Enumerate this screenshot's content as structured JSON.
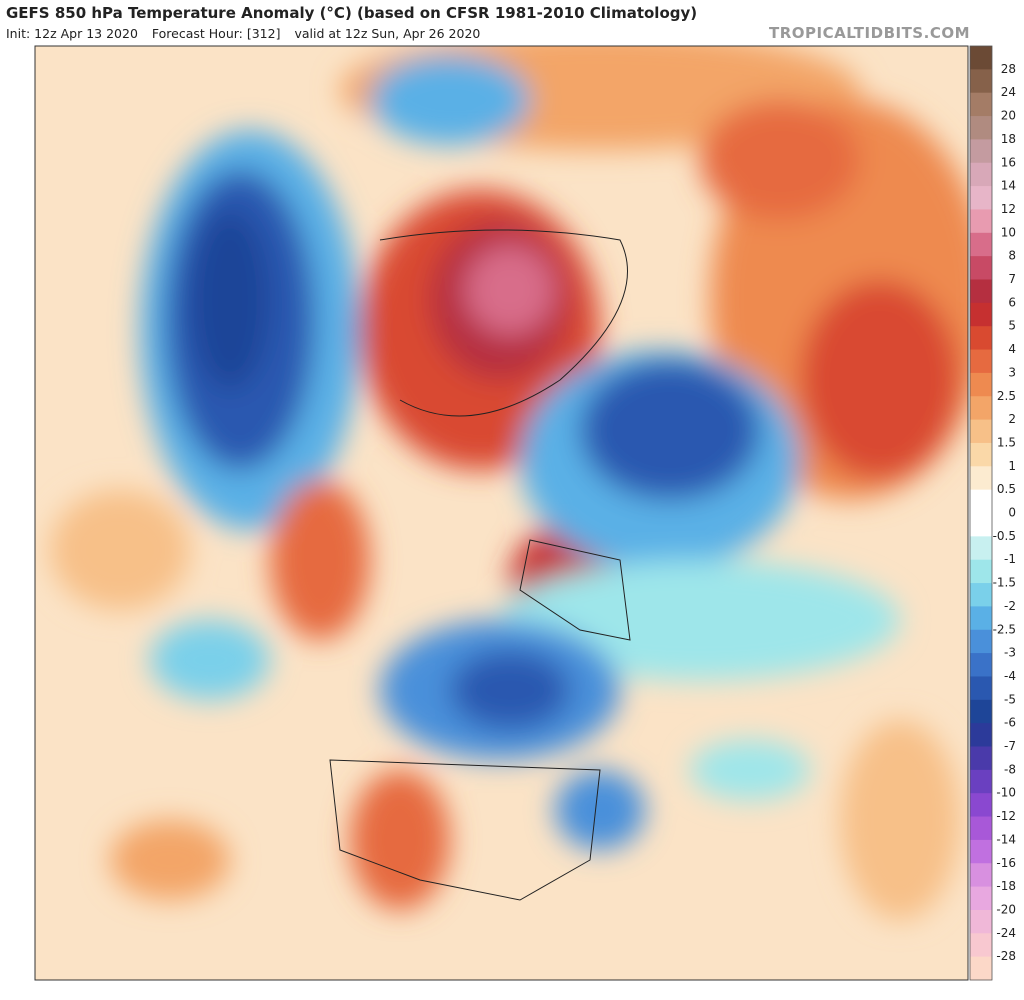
{
  "header": {
    "title": "GEFS 850 hPa Temperature Anomaly (°C) (based on CFSR 1981-2010 Climatology)",
    "init": "Init: 12z Apr 13 2020",
    "forecast_hour": "Forecast Hour: [312]",
    "valid": "valid at 12z Sun, Apr 26 2020",
    "watermark": "TROPICALTIDBITS.COM"
  },
  "colorbar": {
    "labels": [
      28,
      24,
      20,
      18,
      16,
      14,
      12,
      10,
      8,
      7,
      6,
      5,
      4,
      3,
      2.5,
      2,
      1.5,
      1,
      0.5,
      0,
      -0.5,
      -1,
      -1.5,
      -2,
      -2.5,
      -3,
      -4,
      -5,
      -6,
      -7,
      -8,
      -10,
      -12,
      -14,
      -16,
      -18,
      -20,
      -24,
      -28
    ],
    "colors": [
      "#6b4a35",
      "#86614a",
      "#a47c66",
      "#b08b80",
      "#c49ba0",
      "#d8a8b8",
      "#e7b5c8",
      "#e89bb0",
      "#d86d8a",
      "#c84a65",
      "#b52f40",
      "#c63030",
      "#d94a30",
      "#e66a40",
      "#ee8a50",
      "#f3a568",
      "#f7c088",
      "#fad8a8",
      "#fcebd0",
      "#ffffff",
      "#ffffff",
      "#c8f0f0",
      "#9ee6ea",
      "#7ad0ea",
      "#5ab0e6",
      "#4a90da",
      "#3a72c8",
      "#2a58b0",
      "#1e4598",
      "#2c3a9a",
      "#4a3aaa",
      "#6a40c0",
      "#8a48d0",
      "#a858d8",
      "#c070e0",
      "#d890e0",
      "#e8a8e0",
      "#f0b8d8",
      "#f8c8d0",
      "#fcd8c8"
    ]
  }
}
